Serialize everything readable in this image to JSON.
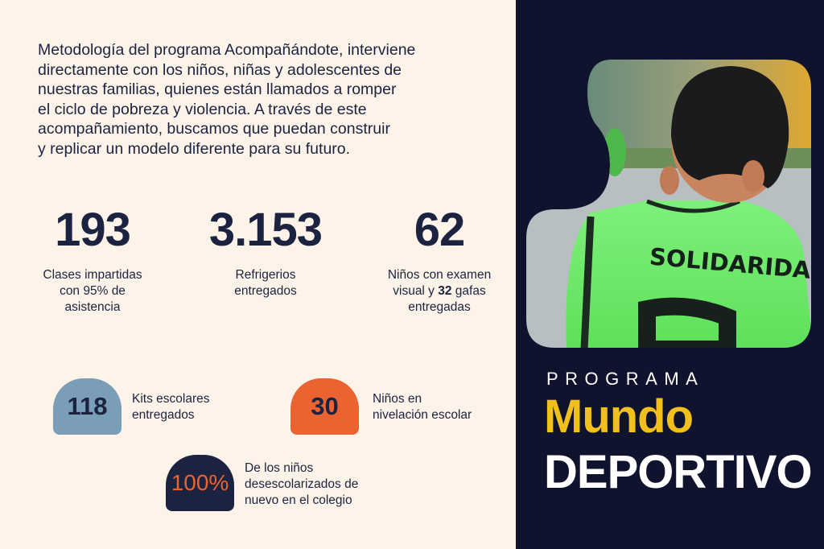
{
  "intro": {
    "lines": [
      "Metodología del programa Acompañándote, interviene",
      "directamente con los niños, niñas y adolescentes de",
      "nuestras familias, quienes están llamados a romper",
      "el ciclo de pobreza y violencia. A través de este",
      "acompañamiento, buscamos que puedan construir",
      "y replicar un modelo diferente para su futuro."
    ]
  },
  "stats": [
    {
      "value": "193",
      "label_lines": [
        "Clases impartidas",
        "con 95% de",
        "asistencia"
      ]
    },
    {
      "value": "3.153",
      "label_lines": [
        "Refrigerios",
        "entregados"
      ]
    },
    {
      "value": "62",
      "label_pre": "Niños con examen",
      "label_mid_a": "visual y ",
      "label_bold": "32",
      "label_mid_b": " gafas",
      "label_post": "entregadas"
    }
  ],
  "badges": [
    {
      "value": "118",
      "label_lines": [
        "Kits escolares",
        "entregados"
      ],
      "color": "#7a9db8",
      "text_color": "#1b2340"
    },
    {
      "value": "30",
      "label_lines": [
        "Niños en",
        "nivelación escolar"
      ],
      "color": "#ec6332",
      "text_color": "#1b2340"
    },
    {
      "value": "100%",
      "label_lines": [
        "De los niños",
        "desescolarizados de",
        "nuevo en el colegio"
      ],
      "color": "#1b2340",
      "text_color": "#ec6332"
    }
  ],
  "photo": {
    "vest_text": "SOLIDARIDAD"
  },
  "title": {
    "kicker": "PROGRAMA",
    "line1": "Mundo",
    "line2": "DEPORTIVO"
  },
  "colors": {
    "background": "#fdf3e9",
    "panel": "#10132e",
    "accent_yellow": "#f2c01a",
    "accent_orange": "#ec6332",
    "accent_blue": "#7a9db8",
    "ink": "#1b2340"
  }
}
